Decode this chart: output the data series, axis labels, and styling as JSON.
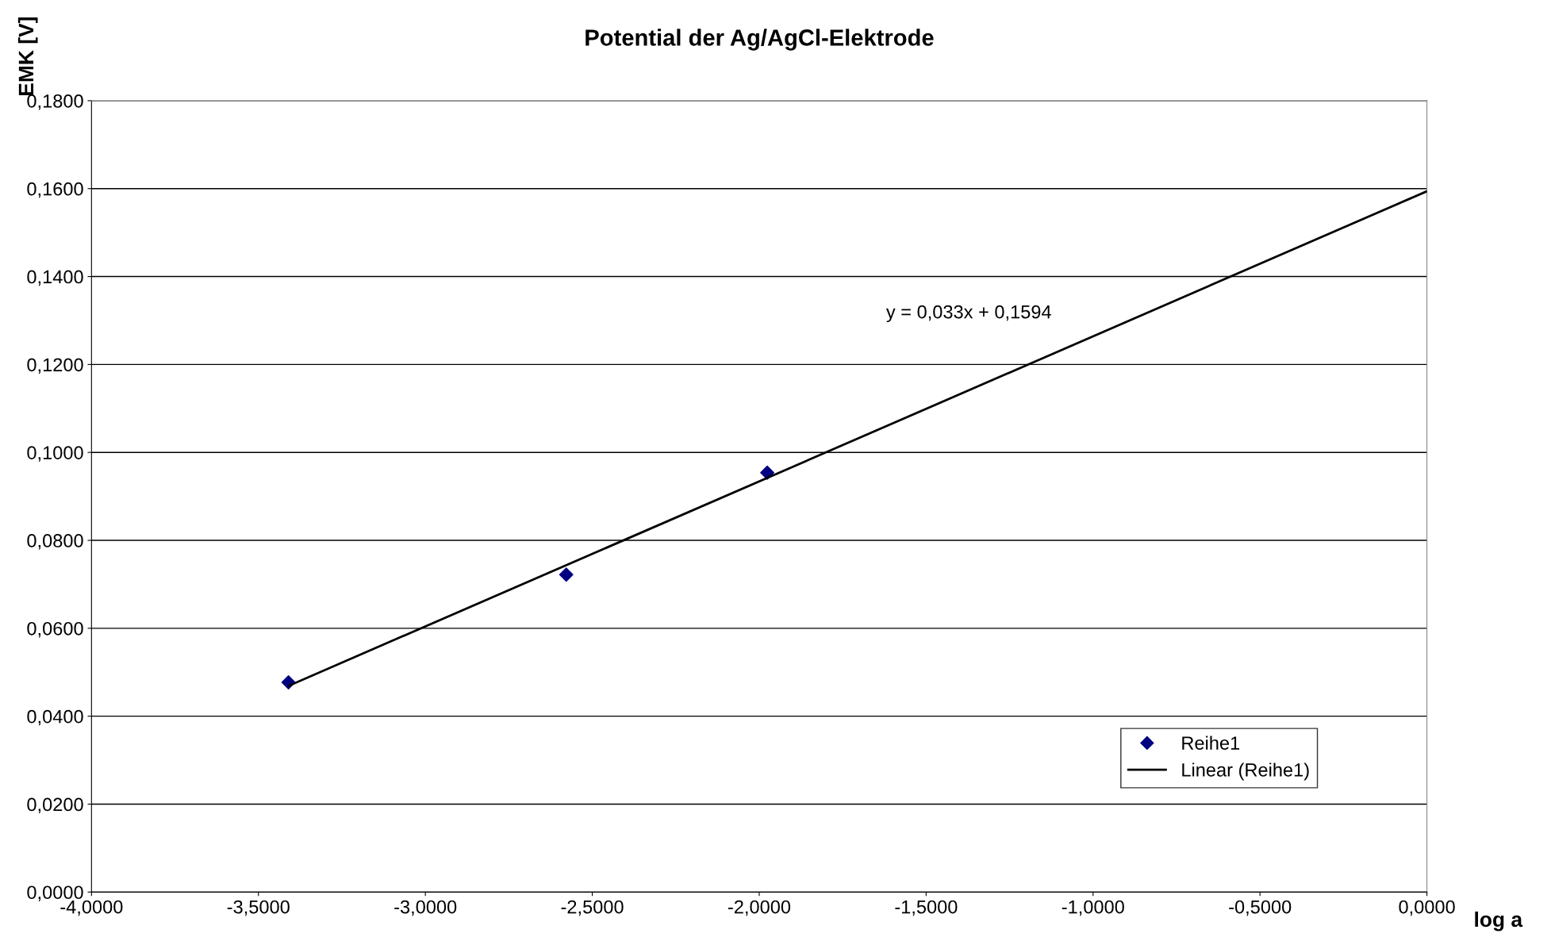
{
  "chart_data": {
    "type": "scatter",
    "title": "Potential der Ag/AgCl-Elektrode",
    "xlabel": "log a",
    "ylabel": "EMK [V]",
    "annotations": [
      "y = 0,033x + 0,1594"
    ],
    "series": [
      {
        "name": "Reihe1",
        "color": "#000080",
        "marker": "diamond",
        "x": [
          -3.41,
          -2.578,
          -1.976
        ],
        "values": [
          0.0477,
          0.0722,
          0.0954
        ]
      },
      {
        "name": "Linear (Reihe1)",
        "type": "line",
        "color": "#000000",
        "marker": "none",
        "line_style": "solid",
        "x": [
          -3.41,
          0
        ],
        "values": [
          0.0469,
          0.1594
        ]
      }
    ],
    "xlim": [
      -4,
      0
    ],
    "ylim": [
      0,
      0.18
    ],
    "xticks": [
      {
        "value": -4,
        "label": "-4,0000"
      },
      {
        "value": -3.5,
        "label": "-3,5000"
      },
      {
        "value": -3,
        "label": "-3,0000"
      },
      {
        "value": -2.5,
        "label": "-2,5000"
      },
      {
        "value": -2,
        "label": "-2,0000"
      },
      {
        "value": -1.5,
        "label": "-1,5000"
      },
      {
        "value": -1,
        "label": "-1,0000"
      },
      {
        "value": -0.5,
        "label": "-0,5000"
      },
      {
        "value": 0,
        "label": "0,0000"
      }
    ],
    "yticks": [
      {
        "value": 0,
        "label": "0,0000"
      },
      {
        "value": 0.02,
        "label": "0,0200"
      },
      {
        "value": 0.04,
        "label": "0,0400"
      },
      {
        "value": 0.06,
        "label": "0,0600"
      },
      {
        "value": 0.08,
        "label": "0,0800"
      },
      {
        "value": 0.1,
        "label": "0,1000"
      },
      {
        "value": 0.12,
        "label": "0,1200"
      },
      {
        "value": 0.14,
        "label": "0,1400"
      },
      {
        "value": 0.16,
        "label": "0,1600"
      },
      {
        "value": 0.18,
        "label": "0,1800"
      }
    ],
    "grid": "y",
    "legend": "bottom right"
  }
}
